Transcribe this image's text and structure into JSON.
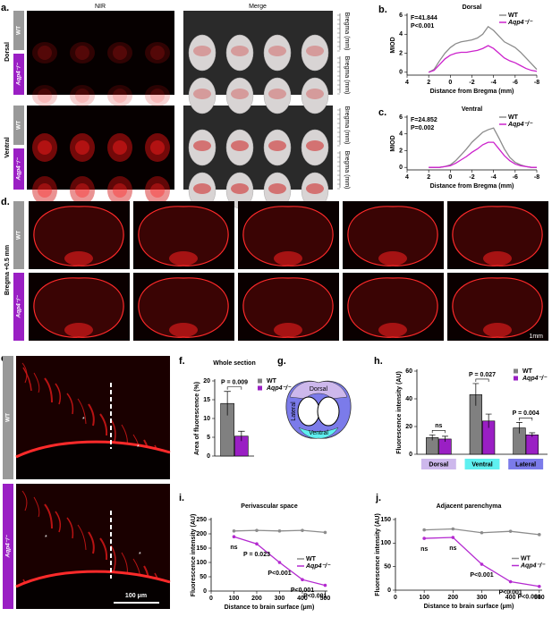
{
  "panel_labels": [
    "a.",
    "b.",
    "c.",
    "d.",
    "e.",
    "f.",
    "g.",
    "h.",
    "i.",
    "j."
  ],
  "panel_a": {
    "col_headers": [
      "NIR",
      "Merge"
    ],
    "row_groups": [
      "Dorsal",
      "Ventral"
    ],
    "genotypes": [
      "WT",
      "Aqp4⁻/⁻"
    ],
    "ruler_label": "Bregma (mm)"
  },
  "panel_d": {
    "section": "Bregma +0.5 mm",
    "scale": "1mm"
  },
  "panel_e": {
    "scale": "100 μm",
    "marker": "*"
  },
  "panel_g": {
    "regions": [
      "Dorsal",
      "Lateral",
      "Ventral"
    ]
  },
  "chart_data": [
    {
      "type": "line",
      "title": "Dorsal",
      "xlabel": "Distance from Bregma (mm)",
      "ylabel": "MIOD",
      "annotations": [
        "F=41.844",
        "P<0.001"
      ],
      "x": [
        2,
        1.5,
        1,
        0.5,
        0,
        -0.5,
        -1,
        -1.5,
        -2,
        -2.5,
        -3,
        -3.5,
        -4,
        -4.5,
        -5,
        -5.5,
        -6,
        -6.5,
        -7,
        -7.5,
        -8
      ],
      "series": [
        {
          "name": "WT",
          "color": "#8c8c8c",
          "values": [
            0,
            0.3,
            1.2,
            2.0,
            2.6,
            3.0,
            3.2,
            3.3,
            3.4,
            3.6,
            4.0,
            4.8,
            4.4,
            3.8,
            3.2,
            2.9,
            2.6,
            2.1,
            1.5,
            0.9,
            0.3
          ]
        },
        {
          "name": "Aqp4⁻/⁻",
          "color": "#cc22cc",
          "values": [
            0,
            0.2,
            0.8,
            1.4,
            1.8,
            2.0,
            2.1,
            2.1,
            2.2,
            2.3,
            2.5,
            2.8,
            2.5,
            2.0,
            1.5,
            1.2,
            1.0,
            0.7,
            0.4,
            0.2,
            0.1
          ]
        }
      ],
      "xlim": [
        4,
        -8
      ],
      "xticks": [
        4,
        2,
        0,
        -2,
        -4,
        -6,
        -8
      ],
      "ylim": [
        -0.3,
        6
      ],
      "yticks": [
        0,
        2,
        4,
        6
      ],
      "legend": "upper right"
    },
    {
      "type": "line",
      "title": "Ventral",
      "xlabel": "Distance from Bregma (mm)",
      "ylabel": "MIOD",
      "annotations": [
        "F=24.852",
        "P=0.002"
      ],
      "x": [
        2,
        1.5,
        1,
        0.5,
        0,
        -0.5,
        -1,
        -1.5,
        -2,
        -2.5,
        -3,
        -3.5,
        -4,
        -4.5,
        -5,
        -5.5,
        -6,
        -6.5,
        -7,
        -7.5,
        -8
      ],
      "series": [
        {
          "name": "WT",
          "color": "#8c8c8c",
          "values": [
            0,
            0,
            0,
            0.1,
            0.3,
            0.8,
            1.5,
            2.2,
            3.0,
            3.6,
            4.2,
            4.5,
            4.7,
            3.5,
            2.2,
            1.2,
            0.6,
            0.3,
            0.1,
            0,
            0
          ]
        },
        {
          "name": "Aqp4⁻/⁻",
          "color": "#cc22cc",
          "values": [
            0,
            0,
            0,
            0.1,
            0.2,
            0.5,
            0.9,
            1.3,
            1.8,
            2.2,
            2.7,
            3.0,
            3.0,
            2.2,
            1.4,
            0.8,
            0.4,
            0.2,
            0.1,
            0,
            0
          ]
        }
      ],
      "xlim": [
        4,
        -8
      ],
      "xticks": [
        4,
        2,
        0,
        -2,
        -4,
        -6,
        -8
      ],
      "ylim": [
        -0.3,
        6
      ],
      "yticks": [
        0,
        2,
        4,
        6
      ],
      "legend": "upper right"
    },
    {
      "type": "bar",
      "title": "Whole section",
      "ylabel": "Area of fluorescence (%)",
      "annotations": [
        "P = 0.009"
      ],
      "series": [
        {
          "name": "WT",
          "color": "#808080",
          "values": [
            14
          ],
          "errors": [
            3.2
          ]
        },
        {
          "name": "Aqp4⁻/⁻",
          "color": "#9a1fc4",
          "values": [
            5.3
          ],
          "errors": [
            1.3
          ]
        }
      ],
      "ylim": [
        0,
        20
      ],
      "yticks": [
        0,
        5,
        10,
        15,
        20
      ],
      "legend": "upper right"
    },
    {
      "type": "bar",
      "ylabel": "Fluorescence intensity (AU)",
      "annotations": [
        "ns",
        "P = 0.027",
        "P = 0.004"
      ],
      "categories": [
        "Dorsal",
        "Ventral",
        "Lateral"
      ],
      "category_colors": [
        "#cdb8ec",
        "#5ff0f0",
        "#7b7bea"
      ],
      "series": [
        {
          "name": "WT",
          "color": "#808080",
          "values": [
            12,
            43,
            19
          ],
          "errors": [
            2,
            8,
            4
          ]
        },
        {
          "name": "Aqp4⁻/⁻",
          "color": "#9a1fc4",
          "values": [
            11,
            24,
            14
          ],
          "errors": [
            2,
            5,
            1.5
          ]
        }
      ],
      "ylim": [
        0,
        60
      ],
      "yticks": [
        0,
        20,
        40,
        60
      ],
      "legend": "upper right"
    },
    {
      "type": "line",
      "title": "Perivascular space",
      "xlabel": "Distance to brain surface (μm)",
      "ylabel": "Fluorescence intensity (AU)",
      "annotations": [
        "ns",
        "P = 0.023",
        "P<0.001",
        "P<0.001",
        "P<0.001"
      ],
      "x": [
        100,
        200,
        300,
        400,
        500
      ],
      "series": [
        {
          "name": "WT",
          "color": "#8c8c8c",
          "values": [
            210,
            212,
            210,
            212,
            205
          ]
        },
        {
          "name": "Aqp4⁻/⁻",
          "color": "#b42ad0",
          "values": [
            190,
            165,
            100,
            40,
            20
          ]
        }
      ],
      "xlim": [
        0,
        510
      ],
      "xticks": [
        0,
        100,
        200,
        300,
        400,
        500
      ],
      "ylim": [
        0,
        250
      ],
      "yticks": [
        0,
        50,
        100,
        150,
        200,
        250
      ],
      "markers": true,
      "legend": "right"
    },
    {
      "type": "line",
      "title": "Adjacent parenchyma",
      "xlabel": "Distance to brain surface (μm)",
      "ylabel": "Fluorescence intensity (AU)",
      "annotations": [
        "ns",
        "ns",
        "P<0.001",
        "P<0.001",
        "P<0.001"
      ],
      "x": [
        100,
        200,
        300,
        400,
        500
      ],
      "series": [
        {
          "name": "WT",
          "color": "#8c8c8c",
          "values": [
            128,
            130,
            122,
            125,
            118
          ]
        },
        {
          "name": "Aqp4⁻/⁻",
          "color": "#b42ad0",
          "values": [
            110,
            112,
            55,
            18,
            8
          ]
        }
      ],
      "xlim": [
        0,
        510
      ],
      "xticks": [
        0,
        100,
        200,
        300,
        400,
        500
      ],
      "ylim": [
        0,
        150
      ],
      "yticks": [
        0,
        50,
        100,
        150
      ],
      "markers": true,
      "legend": "right"
    }
  ]
}
